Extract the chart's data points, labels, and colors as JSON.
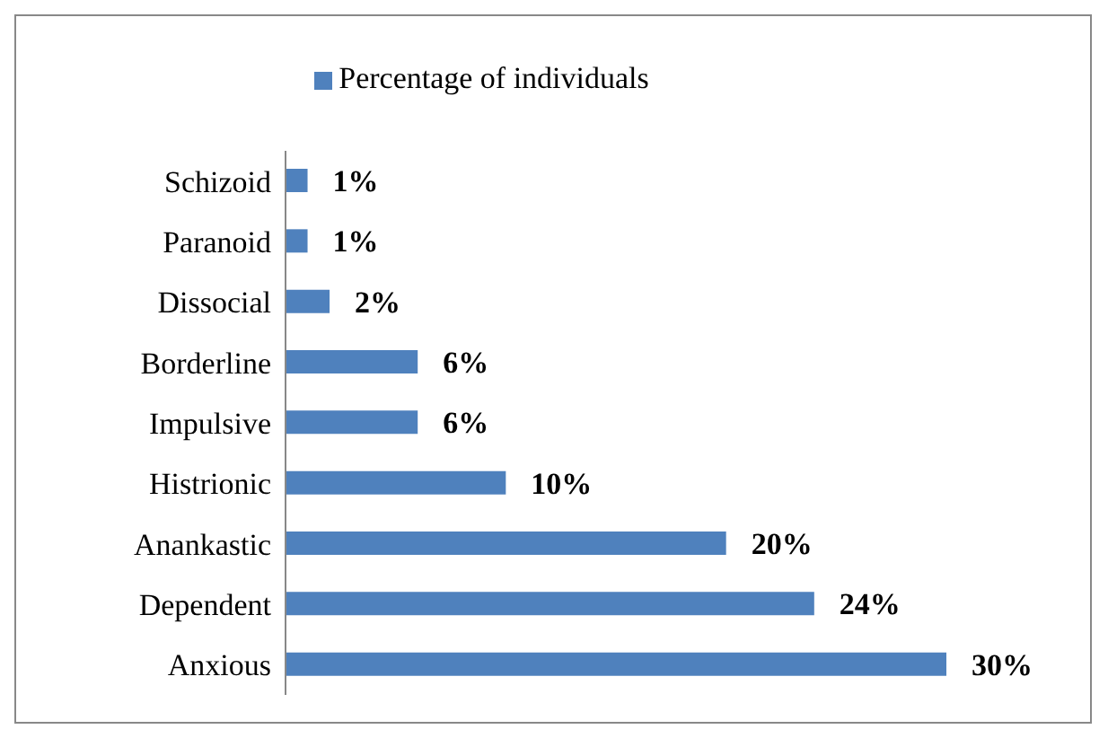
{
  "chart_data": {
    "type": "bar",
    "orientation": "horizontal",
    "categories": [
      "Schizoid",
      "Paranoid",
      "Dissocial",
      "Borderline",
      "Impulsive",
      "Histrionic",
      "Anankastic",
      "Dependent",
      "Anxious"
    ],
    "series": [
      {
        "name": "Percentage of individuals",
        "color": "#4f81bd",
        "values": [
          1,
          1,
          2,
          6,
          6,
          10,
          20,
          24,
          30
        ],
        "value_labels": [
          "1%",
          "1%",
          "2%",
          "6%",
          "6%",
          "10%",
          "20%",
          "24%",
          "30%"
        ]
      }
    ],
    "legend": "top",
    "grid": false
  }
}
